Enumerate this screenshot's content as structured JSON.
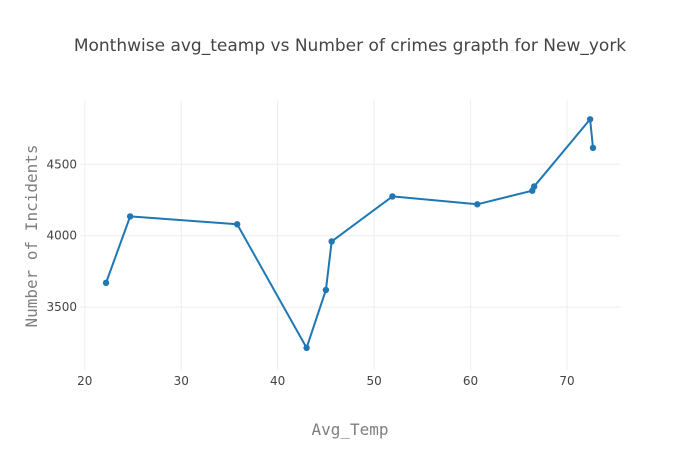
{
  "chart_data": {
    "type": "line",
    "title": "Monthwise avg_teamp vs Number of crimes grapth for New_york",
    "xlabel": "Avg_Temp",
    "ylabel": "Number of Incidents",
    "xlim": [
      19.5,
      75.5
    ],
    "ylim": [
      3060,
      4950
    ],
    "x_ticks": [
      20,
      30,
      40,
      50,
      60,
      70
    ],
    "y_ticks": [
      3500,
      4000,
      4500
    ],
    "grid": true,
    "legend": "none",
    "series": [
      {
        "color": "#1f77b4",
        "x": [
          22.2,
          24.7,
          35.8,
          43.0,
          45.0,
          45.6,
          51.9,
          60.7,
          66.4,
          66.6,
          72.4,
          72.7
        ],
        "y": [
          3670,
          4135,
          4080,
          3215,
          3620,
          3960,
          4275,
          4220,
          4315,
          4345,
          4815,
          4615
        ]
      }
    ]
  }
}
